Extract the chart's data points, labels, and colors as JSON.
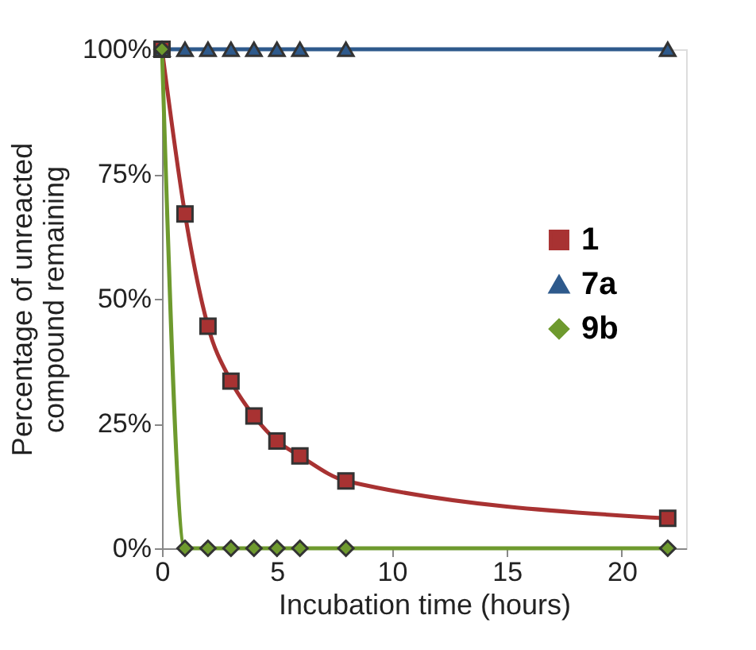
{
  "chart_data": {
    "type": "line",
    "xlabel": "Incubation time (hours)",
    "ylabel": "Percentage of unreacted compound remaining",
    "x": [
      0,
      1,
      2,
      3,
      4,
      5,
      6,
      8,
      22
    ],
    "series": [
      {
        "name": "1",
        "color": "#a83232",
        "marker": "square",
        "values": [
          100,
          67,
          44.5,
          33.5,
          26.5,
          21.5,
          18.5,
          13.5,
          6
        ]
      },
      {
        "name": "7a",
        "color": "#2e5a8c",
        "marker": "triangle",
        "values": [
          100,
          100,
          100,
          100,
          100,
          100,
          100,
          100,
          100
        ]
      },
      {
        "name": "9b",
        "color": "#6e9a2e",
        "marker": "diamond",
        "values": [
          100,
          0,
          0,
          0,
          0,
          0,
          0,
          0,
          0
        ]
      }
    ],
    "xlim": [
      0,
      22.8
    ],
    "xticks": [
      0,
      5,
      10,
      15,
      20
    ],
    "ylim": [
      0,
      100
    ],
    "yticks": [
      {
        "value": 0,
        "label": "0%"
      },
      {
        "value": 25,
        "label": "25%"
      },
      {
        "value": 50,
        "label": "50%"
      },
      {
        "value": 75,
        "label": "75%"
      },
      {
        "value": 100,
        "label": "100%"
      }
    ],
    "grid": false,
    "legend": "right",
    "line_style": "solid"
  }
}
